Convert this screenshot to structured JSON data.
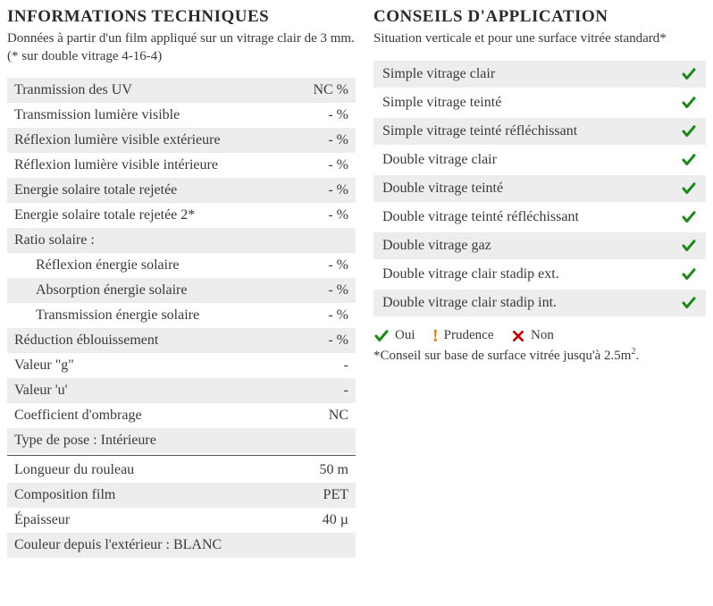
{
  "colors": {
    "check_green": "#1a8b1a",
    "cross_red": "#c00000",
    "warn_orange": "#e07a00",
    "row_bg": "#ededed",
    "text": "#3a3a3a",
    "background": "#ffffff"
  },
  "tech": {
    "title": "INFORMATIONS TECHNIQUES",
    "subtitle": "Données à partir d'un film appliqué sur un vitrage clair de 3 mm. (* sur double vitrage 4-16-4)",
    "rows1": [
      {
        "label": "Tranmission des UV",
        "value": "NC %",
        "indent": false
      },
      {
        "label": "Transmission lumière visible",
        "value": "- %",
        "indent": false
      },
      {
        "label": "Réflexion lumière visible extérieure",
        "value": "- %",
        "indent": false
      },
      {
        "label": "Réflexion lumière visible intérieure",
        "value": "- %",
        "indent": false
      },
      {
        "label": "Energie solaire totale rejetée",
        "value": "- %",
        "indent": false
      },
      {
        "label": "Energie solaire totale rejetée 2*",
        "value": "- %",
        "indent": false
      },
      {
        "label": "Ratio solaire :",
        "value": "",
        "indent": false
      },
      {
        "label": "Réflexion énergie solaire",
        "value": "- %",
        "indent": true
      },
      {
        "label": "Absorption énergie solaire",
        "value": "- %",
        "indent": true
      },
      {
        "label": "Transmission énergie solaire",
        "value": "- %",
        "indent": true
      },
      {
        "label": "Réduction éblouissement",
        "value": "- %",
        "indent": false
      },
      {
        "label": "Valeur \"g\"",
        "value": "-",
        "indent": false
      },
      {
        "label": "Valeur 'u'",
        "value": "-",
        "indent": false
      },
      {
        "label": "Coefficient d'ombrage",
        "value": "NC",
        "indent": false
      },
      {
        "label": "Type de pose : Intérieure",
        "value": "",
        "indent": false
      }
    ],
    "rows2": [
      {
        "label": "Longueur du rouleau",
        "value": "50 m"
      },
      {
        "label": "Composition film",
        "value": "PET"
      },
      {
        "label": "Épaisseur",
        "value": "40 µ"
      },
      {
        "label": "Couleur depuis l'extérieur : BLANC",
        "value": ""
      }
    ]
  },
  "app": {
    "title": "CONSEILS D'APPLICATION",
    "subtitle": "Situation verticale et pour une surface vitrée standard*",
    "rows": [
      {
        "label": "Simple vitrage clair",
        "status": "yes"
      },
      {
        "label": "Simple vitrage teinté",
        "status": "yes"
      },
      {
        "label": "Simple vitrage teinté réfléchissant",
        "status": "yes"
      },
      {
        "label": "Double vitrage clair",
        "status": "yes"
      },
      {
        "label": "Double vitrage teinté",
        "status": "yes"
      },
      {
        "label": "Double vitrage teinté réfléchissant",
        "status": "yes"
      },
      {
        "label": "Double vitrage gaz",
        "status": "yes"
      },
      {
        "label": "Double vitrage clair stadip ext.",
        "status": "yes"
      },
      {
        "label": "Double vitrage clair stadip int.",
        "status": "yes"
      }
    ],
    "legend": {
      "yes": "Oui",
      "warn": "Prudence",
      "no": "Non",
      "note": "*Conseil sur base de surface vitrée jusqu'à 2.5m²."
    }
  }
}
